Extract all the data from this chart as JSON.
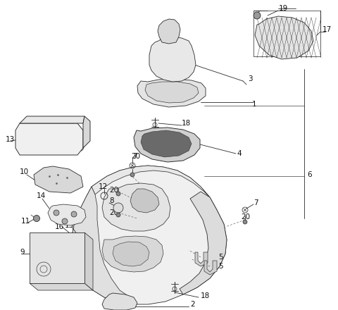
{
  "bg_color": "#ffffff",
  "line_color": "#2a2a2a",
  "figsize": [
    4.8,
    4.4
  ],
  "dpi": 100,
  "lw": 0.75,
  "fs": 7.5
}
